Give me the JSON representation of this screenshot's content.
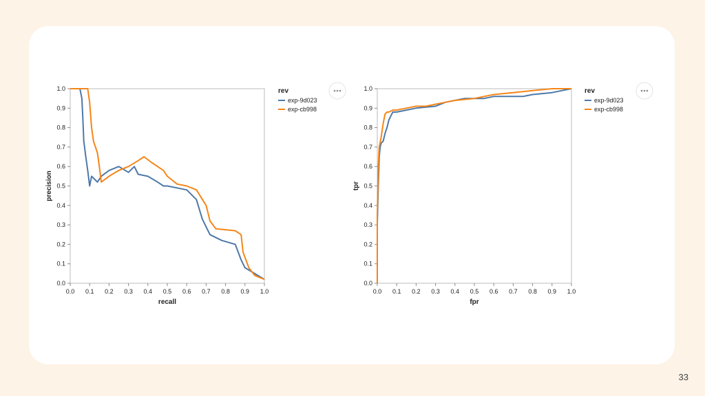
{
  "page_number": "33",
  "colors": {
    "series_blue": "#4c78a8",
    "series_orange": "#f58518",
    "background": "#fdf3e6",
    "card": "#ffffff"
  },
  "menu_icon": "ellipsis-icon",
  "chart_data": [
    {
      "type": "line",
      "xlabel": "recall",
      "ylabel": "precision",
      "xlim": [
        0,
        1
      ],
      "ylim": [
        0,
        1
      ],
      "xticks": [
        "0.0",
        "0.1",
        "0.2",
        "0.3",
        "0.4",
        "0.5",
        "0.6",
        "0.7",
        "0.8",
        "0.9",
        "1.0"
      ],
      "yticks": [
        "0.0",
        "0.1",
        "0.2",
        "0.3",
        "0.4",
        "0.5",
        "0.6",
        "0.7",
        "0.8",
        "0.9",
        "1.0"
      ],
      "legend_title": "rev",
      "legend_position": "right",
      "series": [
        {
          "name": "exp-9d023",
          "x": [
            0,
            0.05,
            0.06,
            0.065,
            0.07,
            0.08,
            0.09,
            0.1,
            0.11,
            0.13,
            0.14,
            0.16,
            0.2,
            0.25,
            0.3,
            0.33,
            0.35,
            0.4,
            0.45,
            0.48,
            0.5,
            0.55,
            0.6,
            0.65,
            0.68,
            0.72,
            0.78,
            0.85,
            0.88,
            0.9,
            0.95,
            1.0
          ],
          "y": [
            1.0,
            1.0,
            0.95,
            0.85,
            0.73,
            0.65,
            0.58,
            0.5,
            0.55,
            0.53,
            0.52,
            0.55,
            0.58,
            0.6,
            0.57,
            0.6,
            0.56,
            0.55,
            0.52,
            0.5,
            0.5,
            0.49,
            0.48,
            0.43,
            0.33,
            0.25,
            0.22,
            0.2,
            0.12,
            0.08,
            0.05,
            0.02
          ]
        },
        {
          "name": "exp-cb998",
          "x": [
            0,
            0.09,
            0.1,
            0.11,
            0.12,
            0.13,
            0.14,
            0.15,
            0.16,
            0.2,
            0.25,
            0.3,
            0.35,
            0.38,
            0.42,
            0.45,
            0.48,
            0.5,
            0.55,
            0.6,
            0.65,
            0.7,
            0.72,
            0.75,
            0.85,
            0.88,
            0.89,
            0.92,
            0.95,
            1.0
          ],
          "y": [
            1.0,
            1.0,
            0.93,
            0.8,
            0.73,
            0.7,
            0.67,
            0.6,
            0.52,
            0.55,
            0.58,
            0.6,
            0.63,
            0.65,
            0.62,
            0.6,
            0.58,
            0.55,
            0.51,
            0.5,
            0.48,
            0.4,
            0.32,
            0.28,
            0.27,
            0.25,
            0.16,
            0.08,
            0.04,
            0.02
          ]
        }
      ]
    },
    {
      "type": "line",
      "xlabel": "fpr",
      "ylabel": "tpr",
      "xlim": [
        0,
        1
      ],
      "ylim": [
        0,
        1
      ],
      "xticks": [
        "0.0",
        "0.1",
        "0.2",
        "0.3",
        "0.4",
        "0.5",
        "0.6",
        "0.7",
        "0.8",
        "0.9",
        "1.0"
      ],
      "yticks": [
        "0.0",
        "0.1",
        "0.2",
        "0.3",
        "0.4",
        "0.5",
        "0.6",
        "0.7",
        "0.8",
        "0.9",
        "1.0"
      ],
      "legend_title": "rev",
      "legend_position": "right",
      "series": [
        {
          "name": "exp-9d023",
          "x": [
            0,
            0,
            0.005,
            0.01,
            0.015,
            0.02,
            0.03,
            0.04,
            0.05,
            0.06,
            0.07,
            0.08,
            0.1,
            0.15,
            0.2,
            0.3,
            0.35,
            0.4,
            0.45,
            0.5,
            0.55,
            0.6,
            0.65,
            0.7,
            0.75,
            0.8,
            0.9,
            1.0
          ],
          "y": [
            0,
            0.3,
            0.5,
            0.65,
            0.7,
            0.72,
            0.73,
            0.77,
            0.8,
            0.84,
            0.86,
            0.88,
            0.88,
            0.89,
            0.9,
            0.91,
            0.93,
            0.94,
            0.95,
            0.95,
            0.95,
            0.96,
            0.96,
            0.96,
            0.96,
            0.97,
            0.98,
            1.0
          ]
        },
        {
          "name": "exp-cb998",
          "x": [
            0,
            0,
            0.005,
            0.01,
            0.02,
            0.03,
            0.04,
            0.05,
            0.06,
            0.08,
            0.1,
            0.15,
            0.2,
            0.25,
            0.3,
            0.35,
            0.4,
            0.5,
            0.55,
            0.6,
            0.7,
            0.8,
            0.9,
            1.0
          ],
          "y": [
            0,
            0.35,
            0.6,
            0.7,
            0.75,
            0.82,
            0.87,
            0.88,
            0.88,
            0.89,
            0.89,
            0.9,
            0.91,
            0.91,
            0.92,
            0.93,
            0.94,
            0.95,
            0.96,
            0.97,
            0.98,
            0.99,
            1.0,
            1.0
          ]
        }
      ]
    }
  ]
}
